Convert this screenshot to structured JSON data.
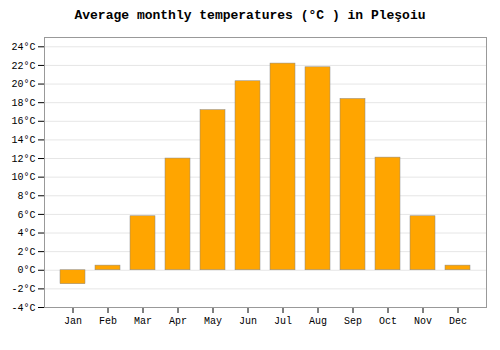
{
  "chart_data": {
    "type": "bar",
    "title": "Average monthly temperatures (°C ) in Pleşoiu",
    "categories": [
      "Jan",
      "Feb",
      "Mar",
      "Apr",
      "May",
      "Jun",
      "Jul",
      "Aug",
      "Sep",
      "Oct",
      "Nov",
      "Dec"
    ],
    "values": [
      -1.5,
      0.5,
      5.8,
      12.0,
      17.2,
      20.3,
      22.2,
      21.8,
      18.4,
      12.1,
      5.8,
      0.5
    ],
    "color": "#FFA500",
    "ylim": [
      -4,
      25
    ],
    "yticks": [
      {
        "value": -4,
        "label": "-4°C"
      },
      {
        "value": -2,
        "label": "-2°C"
      },
      {
        "value": 0,
        "label": "0°C"
      },
      {
        "value": 2,
        "label": "2°C"
      },
      {
        "value": 4,
        "label": "4°C"
      },
      {
        "value": 6,
        "label": "6°C"
      },
      {
        "value": 8,
        "label": "8°C"
      },
      {
        "value": 10,
        "label": "10°C"
      },
      {
        "value": 12,
        "label": "12°C"
      },
      {
        "value": 14,
        "label": "14°C"
      },
      {
        "value": 16,
        "label": "16°C"
      },
      {
        "value": 18,
        "label": "18°C"
      },
      {
        "value": 20,
        "label": "20°C"
      },
      {
        "value": 22,
        "label": "22°C"
      },
      {
        "value": 24,
        "label": "24°C"
      }
    ],
    "grid": true
  }
}
